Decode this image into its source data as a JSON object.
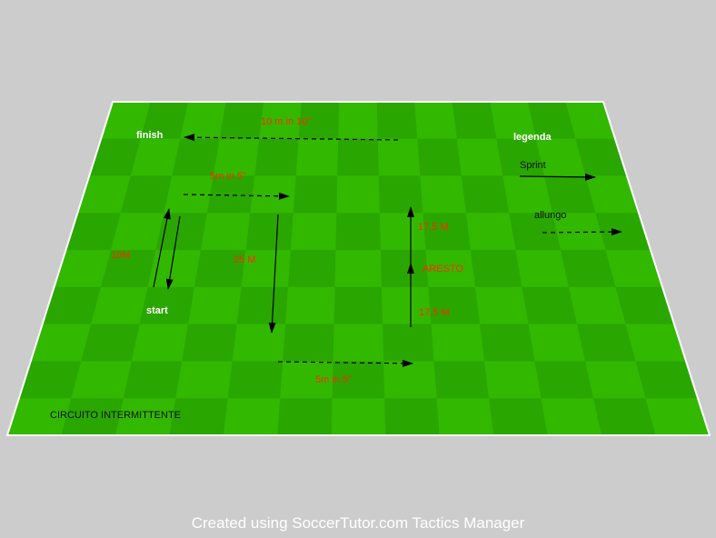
{
  "labels": {
    "finish": "finish",
    "start": "start",
    "top_distance": "10 m in 10\"",
    "upper_run": "5m in 5\"",
    "bottom_run": "5m in 5\"",
    "left_distance": "10M",
    "mid_distance": "25 M",
    "upper_right_distance": "17,5 M",
    "lower_right_distance": "17,5 M",
    "stop": "ARESTO",
    "legend_title": "legenda",
    "legend_sprint": "Sprint",
    "legend_stride": "allungo",
    "circuit_title": "CIRCUITO INTERMITTENTE"
  },
  "footer": {
    "credit": "Created using SoccerTutor.com Tactics Manager"
  },
  "colors": {
    "background": "#cccccc",
    "grass_light": "#33b800",
    "grass_dark": "#2aa600",
    "line": "#ffffff",
    "arrow": "#000000",
    "distance_text": "#ff2a00"
  },
  "icons": {
    "sprint": "solid-arrow-icon",
    "stride": "dashed-arrow-icon"
  }
}
